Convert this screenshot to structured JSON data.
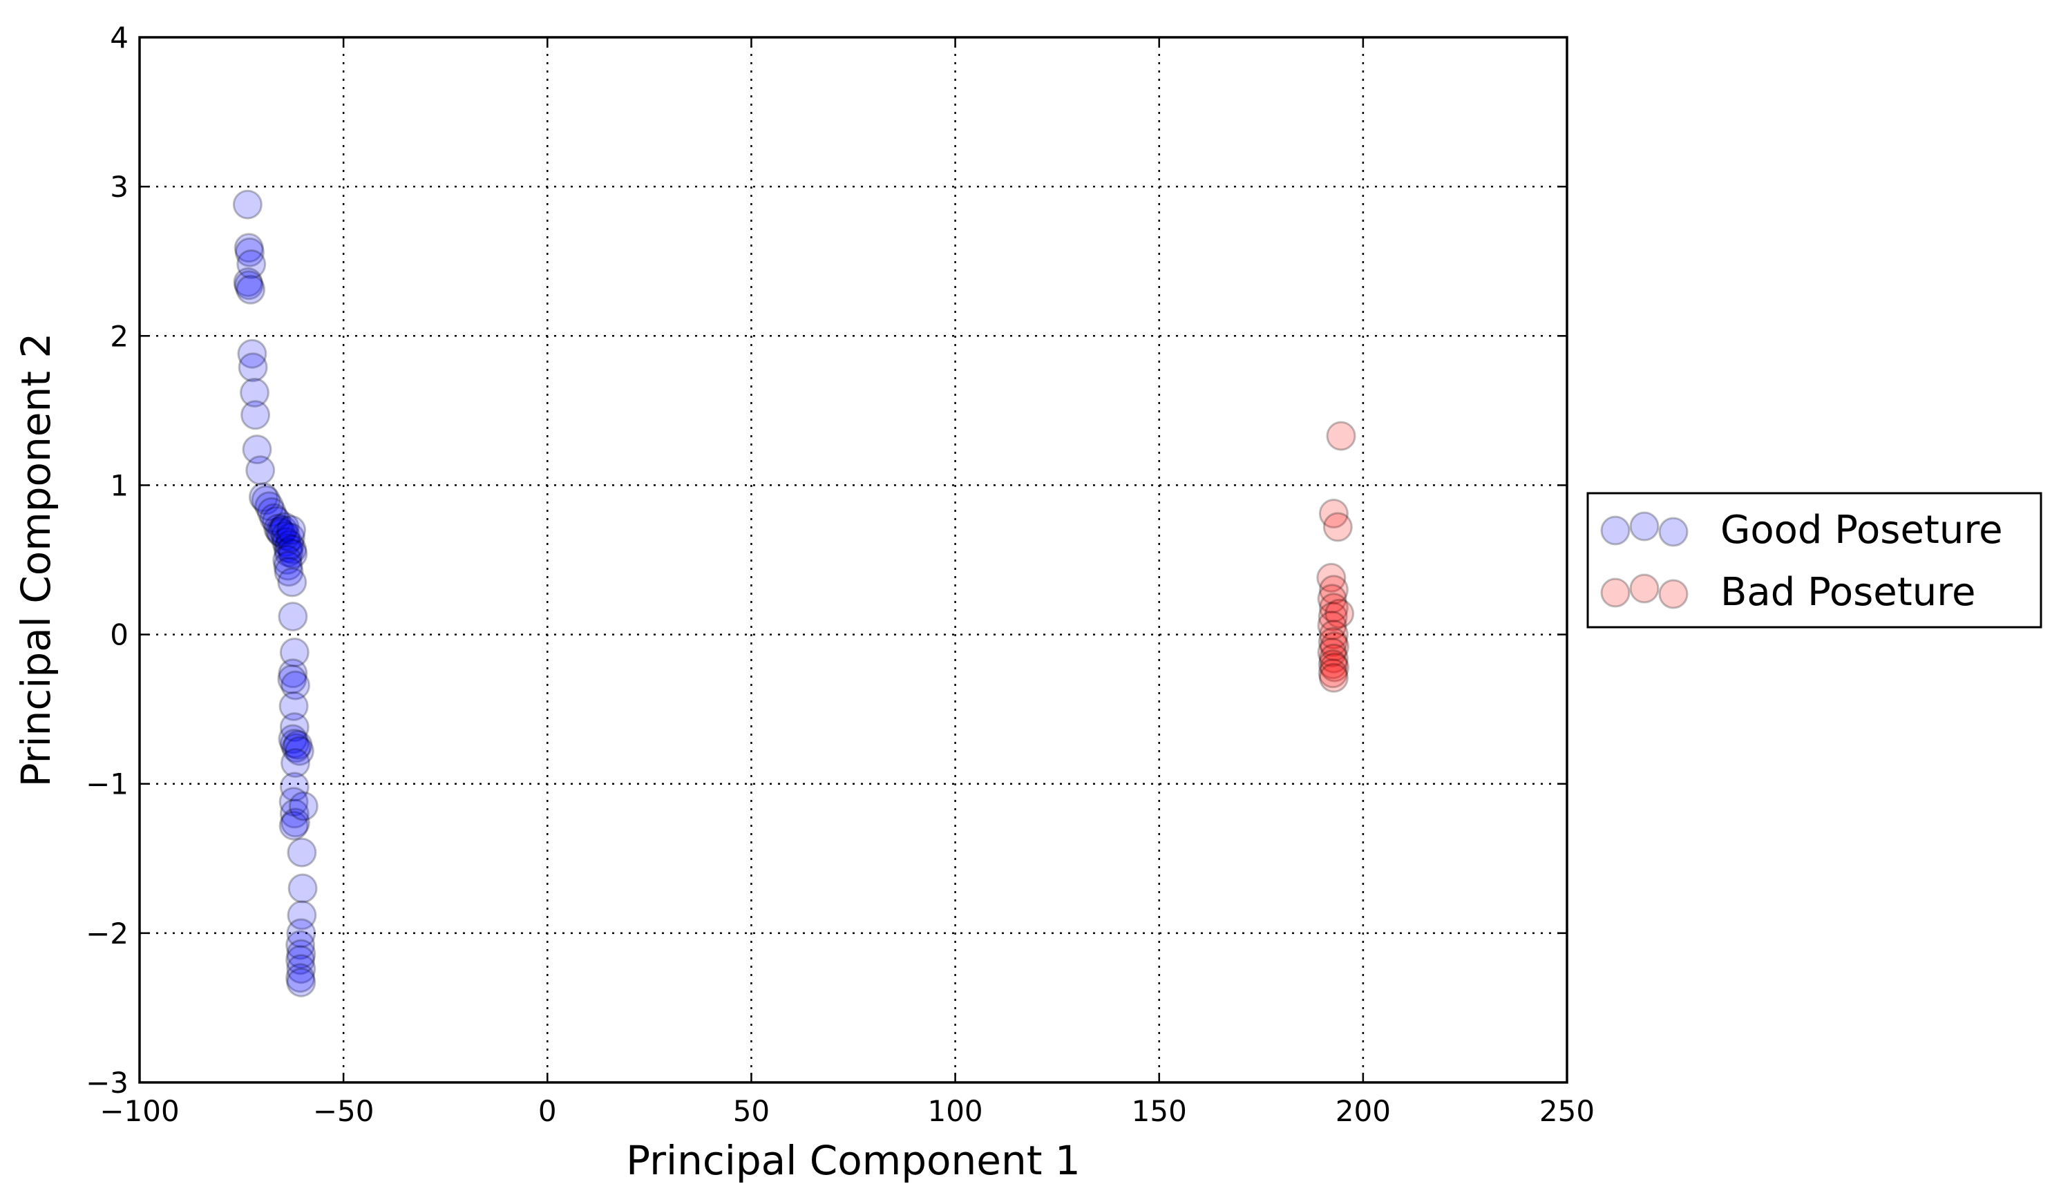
{
  "chart_data": {
    "type": "scatter",
    "title": "",
    "xlabel": "Principal Component 1",
    "ylabel": "Principal Component 2",
    "xlim": [
      -100,
      250
    ],
    "ylim": [
      -3,
      4
    ],
    "xticks": [
      -100,
      -50,
      0,
      50,
      100,
      150,
      200,
      250
    ],
    "xtick_labels": [
      "−100",
      "−50",
      "0",
      "50",
      "100",
      "150",
      "200",
      "250"
    ],
    "yticks": [
      -3,
      -2,
      -1,
      0,
      1,
      2,
      3,
      4
    ],
    "ytick_labels": [
      "−3",
      "−2",
      "−1",
      "0",
      "1",
      "2",
      "3",
      "4"
    ],
    "grid": true,
    "legend_position": "outside-right",
    "series": [
      {
        "name": "Good Poseture",
        "color": "#0000ff",
        "alpha": 0.2,
        "points": [
          [
            -73.5,
            2.88
          ],
          [
            -73.2,
            2.59
          ],
          [
            -73.0,
            2.56
          ],
          [
            -72.6,
            2.48
          ],
          [
            -73.4,
            2.36
          ],
          [
            -73.2,
            2.34
          ],
          [
            -72.8,
            2.31
          ],
          [
            -72.4,
            1.88
          ],
          [
            -72.2,
            1.79
          ],
          [
            -71.8,
            1.62
          ],
          [
            -71.6,
            1.47
          ],
          [
            -71.2,
            1.24
          ],
          [
            -70.4,
            1.1
          ],
          [
            -69.6,
            0.92
          ],
          [
            -69.0,
            0.9
          ],
          [
            -68.2,
            0.86
          ],
          [
            -67.6,
            0.82
          ],
          [
            -67.0,
            0.78
          ],
          [
            -66.4,
            0.76
          ],
          [
            -66.0,
            0.71
          ],
          [
            -65.6,
            0.69
          ],
          [
            -65.2,
            0.68
          ],
          [
            -64.8,
            0.7
          ],
          [
            -64.4,
            0.72
          ],
          [
            -64.2,
            0.66
          ],
          [
            -64.0,
            0.62
          ],
          [
            -63.6,
            0.58
          ],
          [
            -63.4,
            0.55
          ],
          [
            -63.2,
            0.6
          ],
          [
            -63.0,
            0.65
          ],
          [
            -62.8,
            0.7
          ],
          [
            -62.6,
            0.57
          ],
          [
            -62.4,
            0.54
          ],
          [
            -63.8,
            0.5
          ],
          [
            -63.6,
            0.46
          ],
          [
            -63.4,
            0.42
          ],
          [
            -62.6,
            0.35
          ],
          [
            -62.4,
            0.12
          ],
          [
            -62.0,
            -0.12
          ],
          [
            -62.4,
            -0.26
          ],
          [
            -62.6,
            -0.3
          ],
          [
            -61.8,
            -0.34
          ],
          [
            -62.2,
            -0.48
          ],
          [
            -62.0,
            -0.62
          ],
          [
            -62.4,
            -0.7
          ],
          [
            -62.0,
            -0.73
          ],
          [
            -61.6,
            -0.76
          ],
          [
            -61.2,
            -0.74
          ],
          [
            -60.8,
            -0.78
          ],
          [
            -61.8,
            -0.86
          ],
          [
            -62.0,
            -1.02
          ],
          [
            -62.2,
            -1.12
          ],
          [
            -62.0,
            -1.2
          ],
          [
            -61.8,
            -1.26
          ],
          [
            -62.2,
            -1.28
          ],
          [
            -59.8,
            -1.15
          ],
          [
            -60.2,
            -1.46
          ],
          [
            -60.0,
            -1.7
          ],
          [
            -60.2,
            -1.88
          ],
          [
            -60.4,
            -2.0
          ],
          [
            -60.6,
            -2.08
          ],
          [
            -60.4,
            -2.14
          ],
          [
            -60.6,
            -2.18
          ],
          [
            -60.4,
            -2.24
          ],
          [
            -60.6,
            -2.3
          ],
          [
            -60.4,
            -2.33
          ]
        ]
      },
      {
        "name": "Bad Poseture",
        "color": "#ff0000",
        "alpha": 0.2,
        "points": [
          [
            194.6,
            1.33
          ],
          [
            192.8,
            0.81
          ],
          [
            193.8,
            0.72
          ],
          [
            192.2,
            0.38
          ],
          [
            192.8,
            0.3
          ],
          [
            192.4,
            0.24
          ],
          [
            192.8,
            0.18
          ],
          [
            192.6,
            0.12
          ],
          [
            194.2,
            0.14
          ],
          [
            192.4,
            0.06
          ],
          [
            192.8,
            0.0
          ],
          [
            192.6,
            -0.05
          ],
          [
            193.0,
            -0.08
          ],
          [
            192.4,
            -0.12
          ],
          [
            192.8,
            -0.16
          ],
          [
            192.6,
            -0.2
          ],
          [
            193.0,
            -0.22
          ],
          [
            192.6,
            -0.26
          ],
          [
            192.8,
            -0.29
          ]
        ]
      }
    ]
  }
}
